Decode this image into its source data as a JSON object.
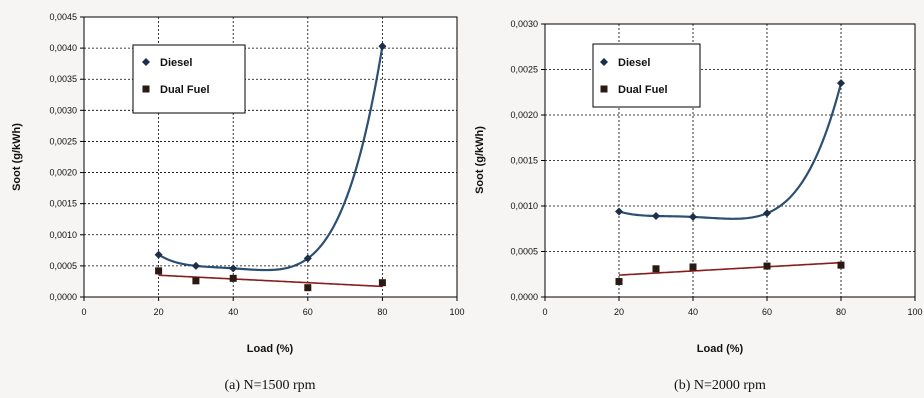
{
  "chart_data": [
    {
      "type": "scatter",
      "caption": "(a) N=1500 rpm",
      "xlabel": "Load (%)",
      "ylabel": "Soot (g/kWh)",
      "xlim": [
        0,
        100
      ],
      "ylim": [
        0,
        0.0045
      ],
      "xticks": [
        "0",
        "20",
        "40",
        "60",
        "80",
        "100"
      ],
      "yticks": [
        "0,0000",
        "0,0005",
        "0,0010",
        "0,0015",
        "0,0020",
        "0,0025",
        "0,0030",
        "0,0035",
        "0,0040",
        "0,0045"
      ],
      "grid": true,
      "legend_position": "top-left",
      "series": [
        {
          "name": "Diesel",
          "marker": "diamond",
          "color": "#1c2e4a",
          "line_color": "#2c4f72",
          "x": [
            20,
            30,
            40,
            60,
            80
          ],
          "values": [
            0.00068,
            0.0005,
            0.00046,
            0.00062,
            0.00403
          ]
        },
        {
          "name": "Dual Fuel",
          "marker": "square",
          "color": "#2a1a12",
          "line_color": "#8a1c1c",
          "x": [
            20,
            30,
            40,
            60,
            80
          ],
          "values": [
            0.00042,
            0.00026,
            0.0003,
            0.00015,
            0.00023
          ]
        }
      ]
    },
    {
      "type": "scatter",
      "caption": "(b) N=2000 rpm",
      "xlabel": "Load (%)",
      "ylabel": "Soot (g/kWh)",
      "xlim": [
        0,
        100
      ],
      "ylim": [
        0,
        0.003
      ],
      "xticks": [
        "0",
        "20",
        "40",
        "60",
        "80",
        "100"
      ],
      "yticks": [
        "0,0000",
        "0,0005",
        "0,0010",
        "0,0015",
        "0,0020",
        "0,0025",
        "0,0030"
      ],
      "grid": true,
      "legend_position": "top-left",
      "series": [
        {
          "name": "Diesel",
          "marker": "diamond",
          "color": "#1c2e4a",
          "line_color": "#2c4f72",
          "x": [
            20,
            30,
            40,
            60,
            80
          ],
          "values": [
            0.00094,
            0.00089,
            0.00088,
            0.00092,
            0.00235
          ]
        },
        {
          "name": "Dual Fuel",
          "marker": "square",
          "color": "#2a1a12",
          "line_color": "#8a1c1c",
          "x": [
            20,
            30,
            40,
            60,
            80
          ],
          "values": [
            0.00017,
            0.00031,
            0.00033,
            0.00034,
            0.00035
          ]
        }
      ]
    }
  ]
}
